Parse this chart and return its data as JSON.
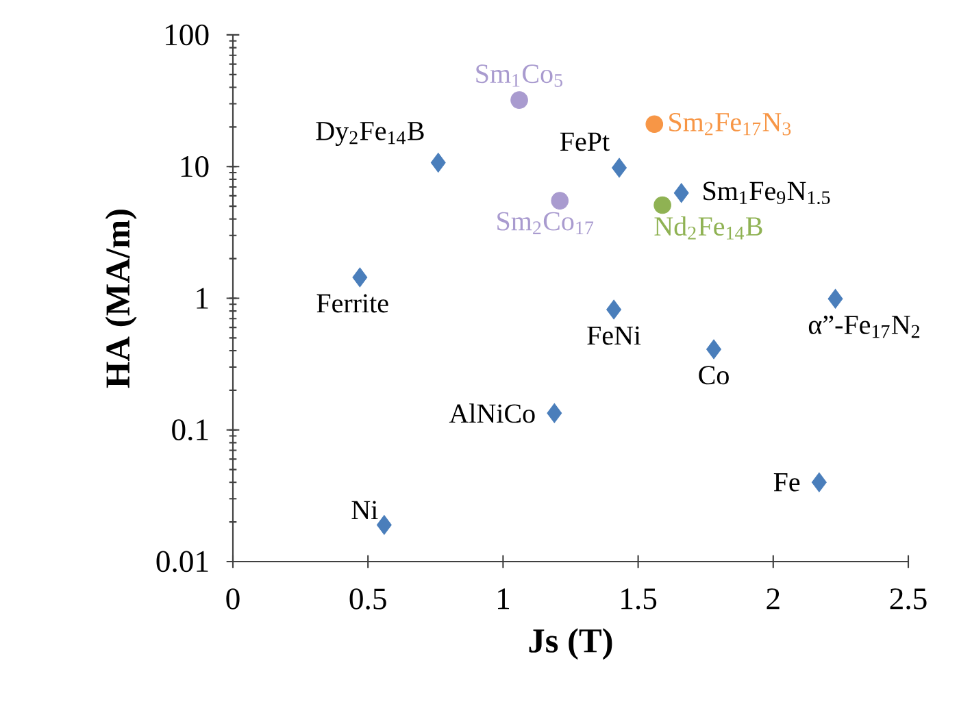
{
  "chart_data": {
    "type": "scatter",
    "xlabel": "Js (T)",
    "ylabel": "HA (MA/m)",
    "xlim": [
      0,
      2.5
    ],
    "xticks": [
      0,
      0.5,
      1,
      1.5,
      2,
      2.5
    ],
    "ylim": [
      0.01,
      100
    ],
    "yticks": [
      0.01,
      0.1,
      1,
      10,
      100
    ],
    "log": "y",
    "grid": false,
    "series": [
      {
        "color": "#4a7ebb",
        "marker": "diamond",
        "x": [
          0.76,
          1.43,
          1.66,
          0.47,
          1.41,
          2.23,
          1.78,
          1.19,
          2.17,
          0.56
        ],
        "values": [
          10.7,
          9.8,
          6.3,
          1.44,
          0.82,
          0.99,
          0.41,
          0.134,
          0.04,
          0.019
        ]
      },
      {
        "name": "Sm$_{1}$Co$_{5}$",
        "color": "#a99bcf",
        "marker": "circle",
        "x": [
          1.06
        ],
        "values": [
          32
        ]
      },
      {
        "name": "Sm$_{2}$Co$_{17}$",
        "color": "#a99bcf",
        "marker": "circle",
        "x": [
          1.21
        ],
        "values": [
          5.5
        ]
      },
      {
        "name": "Sm$_{2}$Fe$_{17}$N$_{3}$",
        "color": "#f79646",
        "marker": "circle",
        "x": [
          1.56
        ],
        "values": [
          21
        ]
      },
      {
        "name": "Nd$_{2}$Fe$_{14}$B",
        "color": "#8fb253",
        "marker": "circle",
        "x": [
          1.59
        ],
        "values": [
          5.1
        ]
      }
    ],
    "annotations": [
      {
        "text": "Dy$_{2}$Fe$_{14}$B",
        "x": 0.76,
        "y": 10.7
      },
      {
        "text": "FePt",
        "x": 1.43,
        "y": 9.8
      },
      {
        "text": "Sm$_{1}$Fe$_{9}$N$_{1.5}$",
        "x": 1.66,
        "y": 6.3
      },
      {
        "text": "Ferrite",
        "x": 0.47,
        "y": 1.44
      },
      {
        "text": "FeNi",
        "x": 1.41,
        "y": 0.82
      },
      {
        "text": "α”-Fe$_{17}$N$_{2}$",
        "x": 2.23,
        "y": 0.99
      },
      {
        "text": "Co",
        "x": 1.78,
        "y": 0.41
      },
      {
        "text": "AlNiCo",
        "x": 1.19,
        "y": 0.134
      },
      {
        "text": "Fe",
        "x": 2.17,
        "y": 0.04
      },
      {
        "text": "Ni",
        "x": 0.56,
        "y": 0.019
      }
    ]
  }
}
